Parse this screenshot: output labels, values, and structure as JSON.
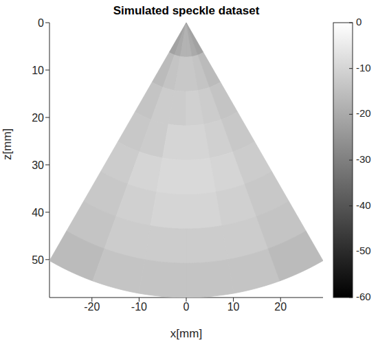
{
  "chart_data": {
    "type": "heatmap",
    "title": "Simulated speckle dataset",
    "x_label": "x[mm]",
    "y_label": "z[mm]",
    "xlim": [
      -29,
      29
    ],
    "ylim": [
      0,
      58
    ],
    "xticks": [
      -20,
      -10,
      0,
      10,
      20
    ],
    "yticks": [
      0,
      10,
      20,
      30,
      40,
      50
    ],
    "r_edges": [
      0,
      7.25,
      14.5,
      21.75,
      29,
      36.25,
      43.5,
      50.75,
      58
    ],
    "theta_edges": [
      -30,
      -20,
      -10,
      0,
      10,
      20,
      30
    ],
    "cells": [
      [
        -22,
        -20,
        -18,
        -18,
        -20,
        -22
      ],
      [
        -16,
        -14,
        -13,
        -13,
        -14,
        -16
      ],
      [
        -14,
        -12,
        -12,
        -11,
        -12,
        -14
      ],
      [
        -13,
        -12,
        -10,
        -10,
        -11,
        -13
      ],
      [
        -12,
        -10,
        -9,
        -9,
        -10,
        -12
      ],
      [
        -13,
        -11,
        -10,
        -10,
        -11,
        -13
      ],
      [
        -14,
        -12,
        -12,
        -12,
        -12,
        -14
      ],
      [
        -16,
        -14,
        -14,
        -14,
        -14,
        -16
      ]
    ],
    "colorbar": {
      "range": [
        -60,
        0
      ],
      "ticks": [
        0,
        -10,
        -20,
        -30,
        -40,
        -50,
        -60
      ]
    },
    "color": "gray"
  }
}
